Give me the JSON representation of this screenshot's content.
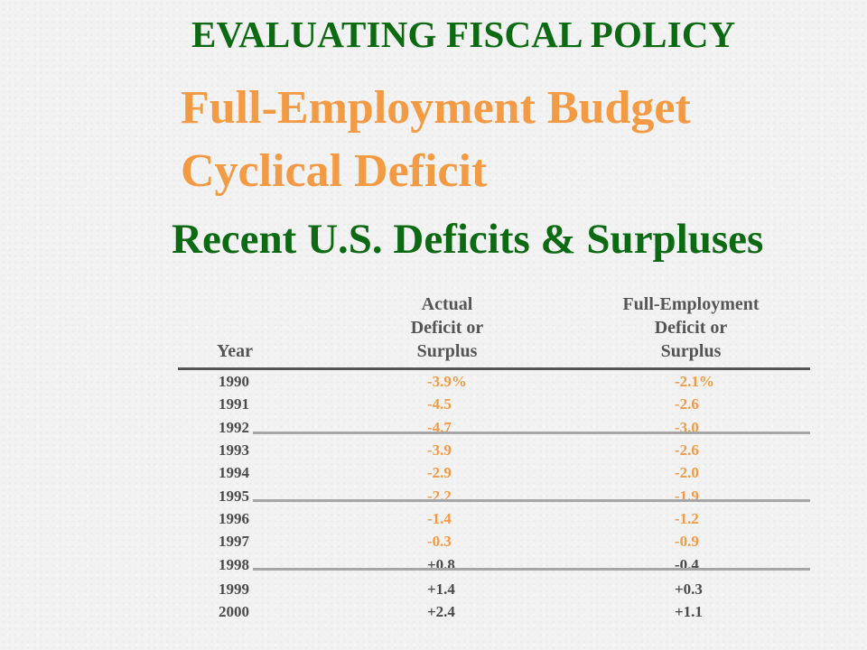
{
  "header": {
    "main_title": "EVALUATING FISCAL POLICY",
    "subtitle_1": "Full-Employment Budget",
    "subtitle_2": "Cyclical Deficit",
    "table_title": "Recent U.S. Deficits & Surpluses"
  },
  "table": {
    "col_year": "Year",
    "col_actual": [
      "Actual",
      "Deficit or",
      "Surplus"
    ],
    "col_full": [
      "Full-Employment",
      "Deficit or",
      "Surplus"
    ],
    "rows": [
      {
        "year": "1990",
        "actual": "-3.9%",
        "full": "-2.1%"
      },
      {
        "year": "1991",
        "actual": "-4.5",
        "full": "-2.6"
      },
      {
        "year": "1992",
        "actual": "-4.7",
        "full": "-3.0"
      },
      {
        "year": "1993",
        "actual": "-3.9",
        "full": "-2.6"
      },
      {
        "year": "1994",
        "actual": "-2.9",
        "full": "-2.0"
      },
      {
        "year": "1995",
        "actual": "-2.2",
        "full": "-1.9"
      },
      {
        "year": "1996",
        "actual": "-1.4",
        "full": "-1.2"
      },
      {
        "year": "1997",
        "actual": "-0.3",
        "full": "-0.9"
      },
      {
        "year": "1998",
        "actual": "+0.8",
        "full": "-0.4"
      },
      {
        "year": "1999",
        "actual": "+1.4",
        "full": "+0.3"
      },
      {
        "year": "2000",
        "actual": "+2.4",
        "full": "+1.1"
      }
    ]
  },
  "colors": {
    "title_green": "#0b6a12",
    "accent_orange": "#f39a45",
    "body_gray": "#4a4a4a"
  }
}
